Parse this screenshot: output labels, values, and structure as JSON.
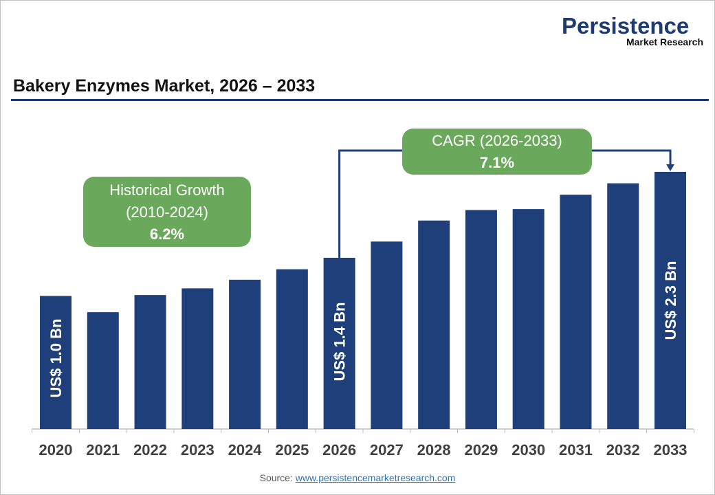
{
  "logo": {
    "line1": "Persistence",
    "line2": "Market Research"
  },
  "header": {
    "title": "Bakery Enzymes Market, 2026 – 2033"
  },
  "annotations": {
    "historical": {
      "label": "Historical Growth",
      "period": "(2010-2024)",
      "value": "6.2%"
    },
    "cagr": {
      "label": "CAGR (2026-2033)",
      "value": "7.1%"
    }
  },
  "source": {
    "prefix": "Source:",
    "link": "www.persistencemarketresearch.com"
  },
  "colors": {
    "bar": "#1f3f7a",
    "annotation": "#6aa85b",
    "axis_text": "#404040"
  },
  "chart_data": {
    "type": "bar",
    "title": "Bakery Enzymes Market, 2026 – 2033",
    "xlabel": "",
    "ylabel": "",
    "unit": "US$ Bn",
    "categories": [
      "2020",
      "2021",
      "2022",
      "2023",
      "2024",
      "2025",
      "2026",
      "2027",
      "2028",
      "2029",
      "2030",
      "2031",
      "2032",
      "2033"
    ],
    "values": [
      1.0,
      0.83,
      1.01,
      1.08,
      1.17,
      1.28,
      1.4,
      1.57,
      1.79,
      1.9,
      1.91,
      2.06,
      2.18,
      2.3
    ],
    "data_labels": [
      {
        "category": "2020",
        "text": "US$ 1.0 Bn"
      },
      {
        "category": "2026",
        "text": "US$ 1.4 Bn"
      },
      {
        "category": "2033",
        "text": "US$ 2.3 Bn"
      }
    ],
    "grid": false,
    "legend": "none"
  }
}
